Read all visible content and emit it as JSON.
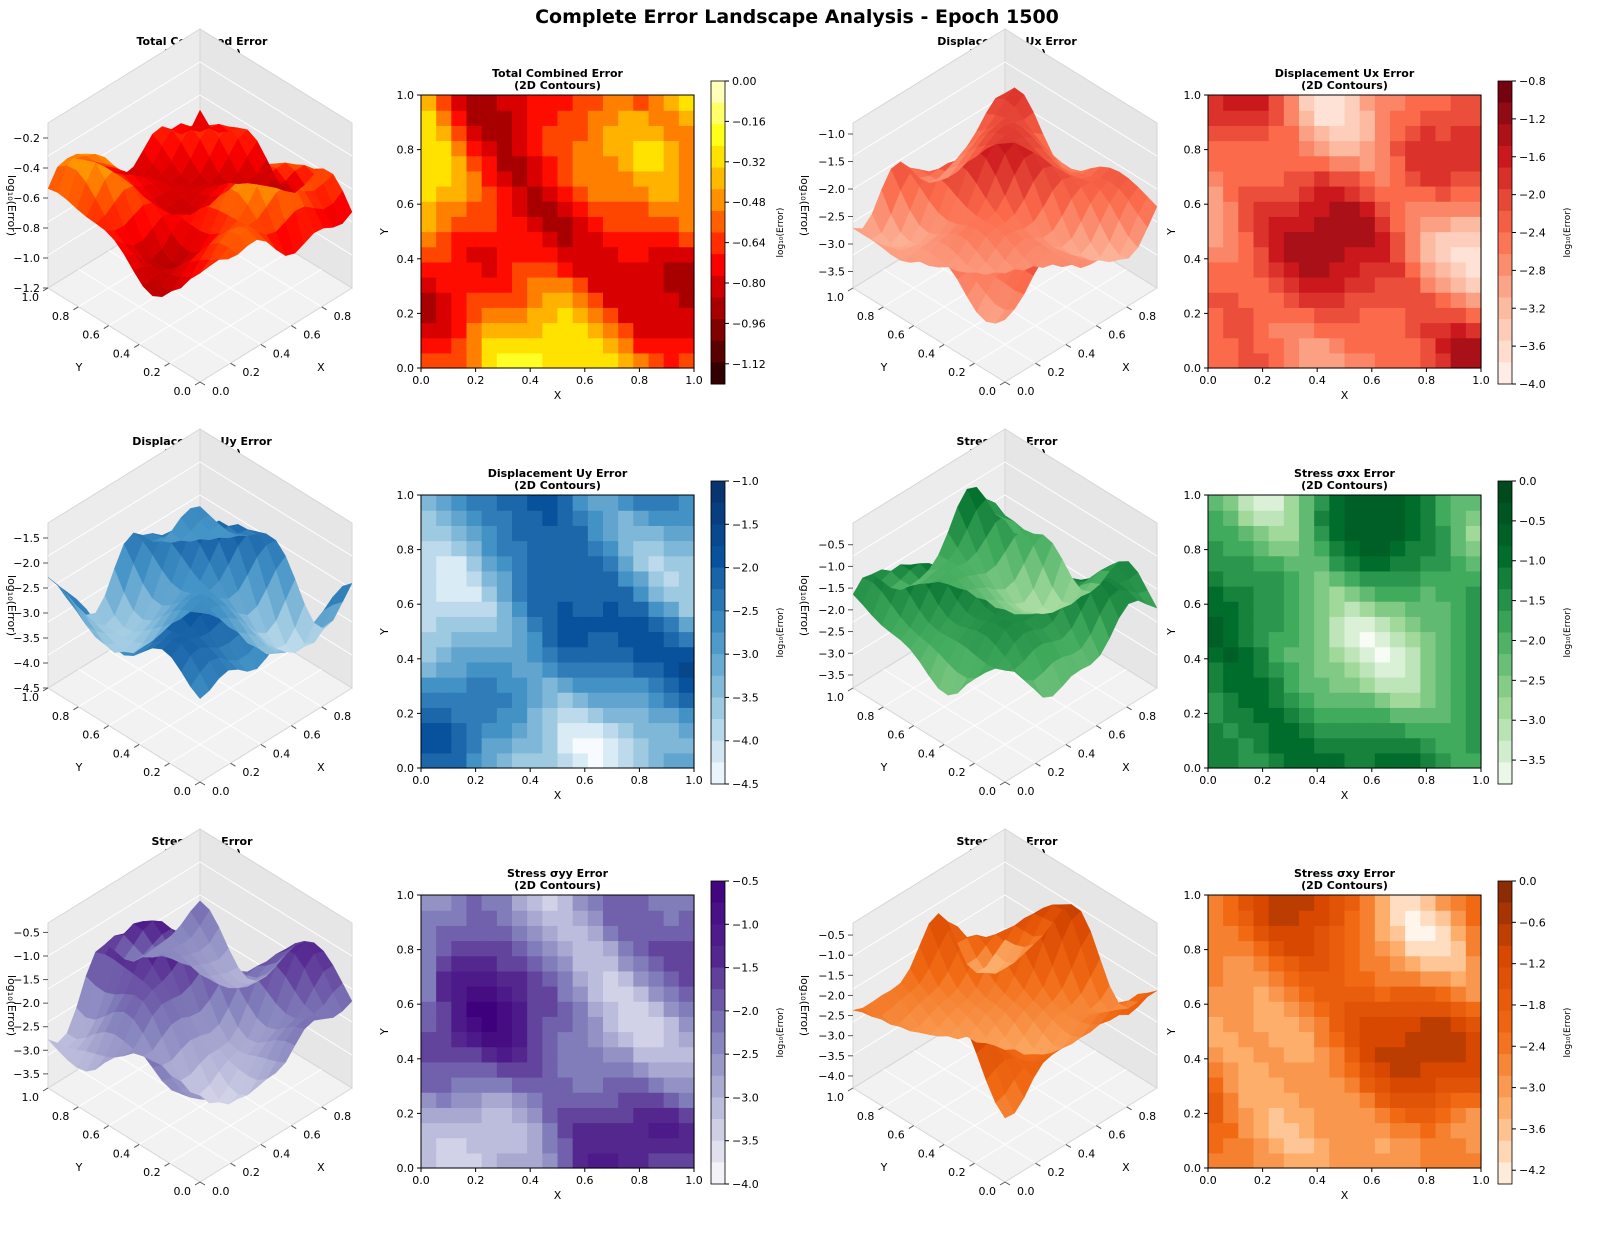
{
  "figure": {
    "title": "Complete Error Landscape Analysis - Epoch 1500"
  },
  "chart_data": [
    {
      "type": "surface",
      "title": "Total Combined Error\n(3D Surface)",
      "xlabel": "X",
      "ylabel": "Y",
      "zlabel": "log₁₀(Error)",
      "xticks": [
        0.0,
        0.2,
        0.4,
        0.6,
        0.8
      ],
      "yticks": [
        0.0,
        0.2,
        0.4,
        0.6,
        0.8,
        1.0
      ],
      "zticks": [
        -0.2,
        -0.4,
        -0.6,
        -0.8,
        -1.0,
        -1.2
      ],
      "zlim": [
        -1.2,
        -0.1
      ],
      "colormap": [
        "#3a0000",
        "#8b0000",
        "#ff0000",
        "#ff8c00",
        "#ffff00"
      ]
    },
    {
      "type": "contour",
      "title": "Total Combined Error\n(2D Contours)",
      "xlabel": "X",
      "ylabel": "Y",
      "xticks": [
        0.0,
        0.2,
        0.4,
        0.6,
        0.8,
        1.0
      ],
      "yticks": [
        0.0,
        0.2,
        0.4,
        0.6,
        0.8,
        1.0
      ],
      "colorbar_label": "log₁₀(Error)",
      "colorbar_ticks": [
        0.0,
        -0.16,
        -0.32,
        -0.48,
        -0.64,
        -0.8,
        -0.96,
        -1.12
      ],
      "clim": [
        -1.2,
        0.0
      ],
      "colormap": [
        "#200000",
        "#8b0000",
        "#ff0000",
        "#ff8c00",
        "#ffff00",
        "#ffffe0"
      ]
    },
    {
      "type": "surface",
      "title": "Displacement Ux Error\n(3D Surface)",
      "xlabel": "X",
      "ylabel": "Y",
      "zlabel": "log₁₀(Error)",
      "xticks": [
        0.0,
        0.2,
        0.4,
        0.6,
        0.8
      ],
      "yticks": [
        0.0,
        0.2,
        0.4,
        0.6,
        0.8,
        1.0
      ],
      "zticks": [
        -1.0,
        -1.5,
        -2.0,
        -2.5,
        -3.0,
        -3.5
      ],
      "zlim": [
        -3.8,
        -0.8
      ],
      "colormap": [
        "#fff5f0",
        "#fcbba1",
        "#fb6a4a",
        "#cb181d",
        "#67000d"
      ]
    },
    {
      "type": "contour",
      "title": "Displacement Ux Error\n(2D Contours)",
      "xlabel": "X",
      "ylabel": "Y",
      "xticks": [
        0.0,
        0.2,
        0.4,
        0.6,
        0.8,
        1.0
      ],
      "yticks": [
        0.0,
        0.2,
        0.4,
        0.6,
        0.8,
        1.0
      ],
      "colorbar_label": "log₁₀(Error)",
      "colorbar_ticks": [
        -0.8,
        -1.2,
        -1.6,
        -2.0,
        -2.4,
        -2.8,
        -3.2,
        -3.6,
        -4.0
      ],
      "clim": [
        -4.0,
        -0.8
      ],
      "colormap": [
        "#fff5f0",
        "#fcbba1",
        "#fb6a4a",
        "#cb181d",
        "#67000d"
      ]
    },
    {
      "type": "surface",
      "title": "Displacement Uy Error\n(3D Surface)",
      "xlabel": "X",
      "ylabel": "Y",
      "zlabel": "log₁₀(Error)",
      "xticks": [
        0.0,
        0.2,
        0.4,
        0.6,
        0.8
      ],
      "yticks": [
        0.0,
        0.2,
        0.4,
        0.6,
        0.8,
        1.0
      ],
      "zticks": [
        -1.5,
        -2.0,
        -2.5,
        -3.0,
        -3.5,
        -4.0,
        -4.5
      ],
      "zlim": [
        -4.5,
        -1.2
      ],
      "colormap": [
        "#f7fbff",
        "#9ecae1",
        "#4292c6",
        "#08519c",
        "#08306b"
      ]
    },
    {
      "type": "contour",
      "title": "Displacement Uy Error\n(2D Contours)",
      "xlabel": "X",
      "ylabel": "Y",
      "xticks": [
        0.0,
        0.2,
        0.4,
        0.6,
        0.8,
        1.0
      ],
      "yticks": [
        0.0,
        0.2,
        0.4,
        0.6,
        0.8,
        1.0
      ],
      "colorbar_label": "log₁₀(Error)",
      "colorbar_ticks": [
        -1.0,
        -1.5,
        -2.0,
        -2.5,
        -3.0,
        -3.5,
        -4.0,
        -4.5
      ],
      "clim": [
        -4.5,
        -1.0
      ],
      "colormap": [
        "#f7fbff",
        "#9ecae1",
        "#4292c6",
        "#08519c",
        "#08306b"
      ]
    },
    {
      "type": "surface",
      "title": "Stress σxx Error\n(3D Surface)",
      "xlabel": "X",
      "ylabel": "Y",
      "zlabel": "log₁₀(Error)",
      "xticks": [
        0.0,
        0.2,
        0.4,
        0.6,
        0.8
      ],
      "yticks": [
        0.0,
        0.2,
        0.4,
        0.6,
        0.8,
        1.0
      ],
      "zticks": [
        -0.5,
        -1.0,
        -1.5,
        -2.0,
        -2.5,
        -3.0,
        -3.5
      ],
      "zlim": [
        -3.8,
        0.0
      ],
      "colormap": [
        "#f7fcf5",
        "#a1d99b",
        "#41ab5d",
        "#006d2c",
        "#00441b"
      ]
    },
    {
      "type": "contour",
      "title": "Stress σxx Error\n(2D Contours)",
      "xlabel": "X",
      "ylabel": "Y",
      "xticks": [
        0.0,
        0.2,
        0.4,
        0.6,
        0.8,
        1.0
      ],
      "yticks": [
        0.0,
        0.2,
        0.4,
        0.6,
        0.8,
        1.0
      ],
      "colorbar_label": "log₁₀(Error)",
      "colorbar_ticks": [
        0.0,
        -0.5,
        -1.0,
        -1.5,
        -2.0,
        -2.5,
        -3.0,
        -3.5
      ],
      "clim": [
        -3.8,
        0.0
      ],
      "colormap": [
        "#f7fcf5",
        "#a1d99b",
        "#41ab5d",
        "#006d2c",
        "#00441b"
      ]
    },
    {
      "type": "surface",
      "title": "Stress σyy Error\n(3D Surface)",
      "xlabel": "X",
      "ylabel": "Y",
      "zlabel": "log₁₀(Error)",
      "xticks": [
        0.0,
        0.2,
        0.4,
        0.6,
        0.8
      ],
      "yticks": [
        0.0,
        0.2,
        0.4,
        0.6,
        0.8,
        1.0
      ],
      "zticks": [
        -0.5,
        -1.0,
        -1.5,
        -2.0,
        -2.5,
        -3.0,
        -3.5
      ],
      "zlim": [
        -3.8,
        -0.3
      ],
      "colormap": [
        "#fcfbfd",
        "#bcbddc",
        "#807dba",
        "#54278f",
        "#3f007d"
      ]
    },
    {
      "type": "contour",
      "title": "Stress σyy Error\n(2D Contours)",
      "xlabel": "X",
      "ylabel": "Y",
      "xticks": [
        0.0,
        0.2,
        0.4,
        0.6,
        0.8,
        1.0
      ],
      "yticks": [
        0.0,
        0.2,
        0.4,
        0.6,
        0.8,
        1.0
      ],
      "colorbar_label": "log₁₀(Error)",
      "colorbar_ticks": [
        -0.5,
        -1.0,
        -1.5,
        -2.0,
        -2.5,
        -3.0,
        -3.5,
        -4.0
      ],
      "clim": [
        -4.0,
        -0.5
      ],
      "colormap": [
        "#fcfbfd",
        "#bcbddc",
        "#807dba",
        "#54278f",
        "#3f007d"
      ]
    },
    {
      "type": "surface",
      "title": "Stress σxy Error\n(3D Surface)",
      "xlabel": "X",
      "ylabel": "Y",
      "zlabel": "log₁₀(Error)",
      "xticks": [
        0.0,
        0.2,
        0.4,
        0.6,
        0.8
      ],
      "yticks": [
        0.0,
        0.2,
        0.4,
        0.6,
        0.8,
        1.0
      ],
      "zticks": [
        -0.5,
        -1.0,
        -1.5,
        -2.0,
        -2.5,
        -3.0,
        -3.5,
        -4.0
      ],
      "zlim": [
        -4.3,
        -0.2
      ],
      "colormap": [
        "#fff5eb",
        "#fdae6b",
        "#f16913",
        "#d94801",
        "#7f2704"
      ]
    },
    {
      "type": "contour",
      "title": "Stress σxy Error\n(2D Contours)",
      "xlabel": "X",
      "ylabel": "Y",
      "xticks": [
        0.0,
        0.2,
        0.4,
        0.6,
        0.8,
        1.0
      ],
      "yticks": [
        0.0,
        0.2,
        0.4,
        0.6,
        0.8,
        1.0
      ],
      "colorbar_label": "log₁₀(Error)",
      "colorbar_ticks": [
        0.0,
        -0.6,
        -1.2,
        -1.8,
        -2.4,
        -3.0,
        -3.6,
        -4.2
      ],
      "clim": [
        -4.4,
        0.0
      ],
      "colormap": [
        "#fff5eb",
        "#fdae6b",
        "#f16913",
        "#d94801",
        "#7f2704"
      ]
    }
  ]
}
